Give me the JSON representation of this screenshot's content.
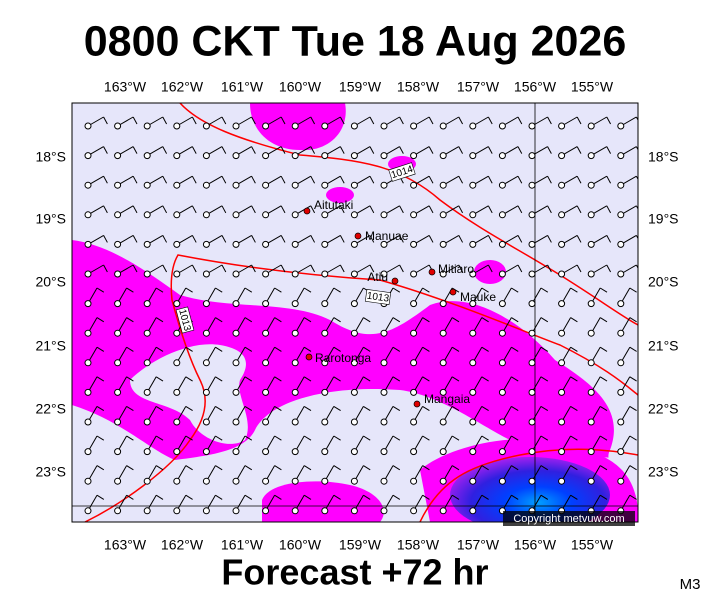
{
  "header": {
    "title": "0800 CKT Tue 18 Aug 2026"
  },
  "map": {
    "lon_labels": [
      "163°W",
      "162°W",
      "161°W",
      "160°W",
      "159°W",
      "158°W",
      "157°W",
      "156°W",
      "155°W"
    ],
    "lat_labels": [
      "18°S",
      "19°S",
      "20°S",
      "21°S",
      "22°S",
      "23°S"
    ],
    "places": [
      "Aitutaki",
      "Manuae",
      "Atiu",
      "Mitiaro",
      "Mauke",
      "Rarotonga",
      "Mangaia"
    ],
    "isobar_labels": [
      "1014",
      "1013",
      "1013"
    ],
    "copyright": "Copyright metvuw.com"
  },
  "footer": {
    "forecast": "Forecast +72 hr",
    "model": "M3"
  }
}
